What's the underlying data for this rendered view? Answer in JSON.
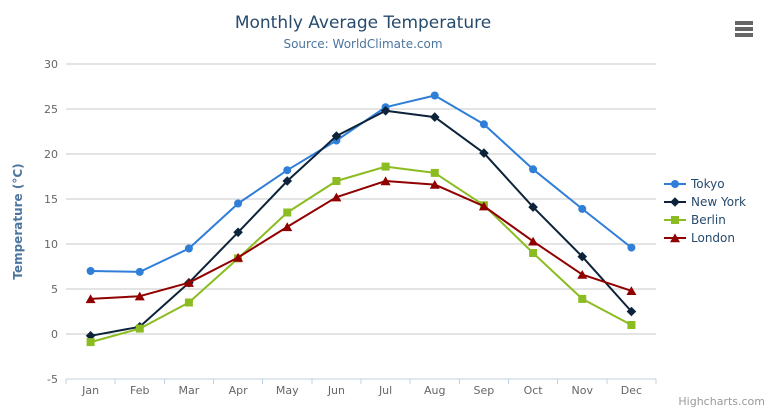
{
  "credits": "Highcharts.com",
  "toolbar": {
    "export_menu_icon": "hamburger-icon"
  },
  "chart_data": {
    "type": "line",
    "title": "Monthly Average Temperature",
    "subtitle": "Source: WorldClimate.com",
    "categories": [
      "Jan",
      "Feb",
      "Mar",
      "Apr",
      "May",
      "Jun",
      "Jul",
      "Aug",
      "Sep",
      "Oct",
      "Nov",
      "Dec"
    ],
    "xlabel": "",
    "ylabel": "Temperature (°C)",
    "ylim": [
      -5,
      30
    ],
    "y_tick_interval": 5,
    "grid": true,
    "legend_position": "right",
    "series": [
      {
        "name": "Tokyo",
        "color": "#2f7ed8",
        "marker": "circle",
        "values": [
          7.0,
          6.9,
          9.5,
          14.5,
          18.2,
          21.5,
          25.2,
          26.5,
          23.3,
          18.3,
          13.9,
          9.6
        ]
      },
      {
        "name": "New York",
        "color": "#0d233a",
        "marker": "diamond",
        "values": [
          -0.2,
          0.8,
          5.7,
          11.3,
          17.0,
          22.0,
          24.8,
          24.1,
          20.1,
          14.1,
          8.6,
          2.5
        ]
      },
      {
        "name": "Berlin",
        "color": "#8bbc21",
        "marker": "square",
        "values": [
          -0.9,
          0.6,
          3.5,
          8.4,
          13.5,
          17.0,
          18.6,
          17.9,
          14.3,
          9.0,
          3.9,
          1.0
        ]
      },
      {
        "name": "London",
        "color": "#910000",
        "marker": "triangle",
        "values": [
          3.9,
          4.2,
          5.7,
          8.5,
          11.9,
          15.2,
          17.0,
          16.6,
          14.2,
          10.3,
          6.6,
          4.8
        ]
      }
    ]
  }
}
